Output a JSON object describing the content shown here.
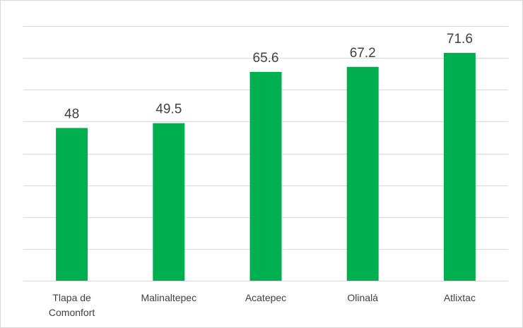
{
  "chart_data": {
    "type": "bar",
    "title": "",
    "xlabel": "",
    "ylabel": "",
    "categories": [
      "Tlapa de Comonfort",
      "Malinaltepec",
      "Acatepec",
      "Olinalá",
      "Atlixtac"
    ],
    "category_lines": [
      [
        "Tlapa de",
        "Comonfort"
      ],
      [
        "Malinaltepec"
      ],
      [
        "Acatepec"
      ],
      [
        "Olinalá"
      ],
      [
        "Atlixtac"
      ]
    ],
    "values": [
      48,
      49.5,
      65.6,
      67.2,
      71.6
    ],
    "data_labels": [
      "48",
      "49.5",
      "65.6",
      "67.2",
      "71.6"
    ],
    "ylim": [
      0,
      80
    ],
    "grid": true,
    "legend": "none",
    "bar_color": "#00b050",
    "axis_color": "#d9d9d9"
  }
}
